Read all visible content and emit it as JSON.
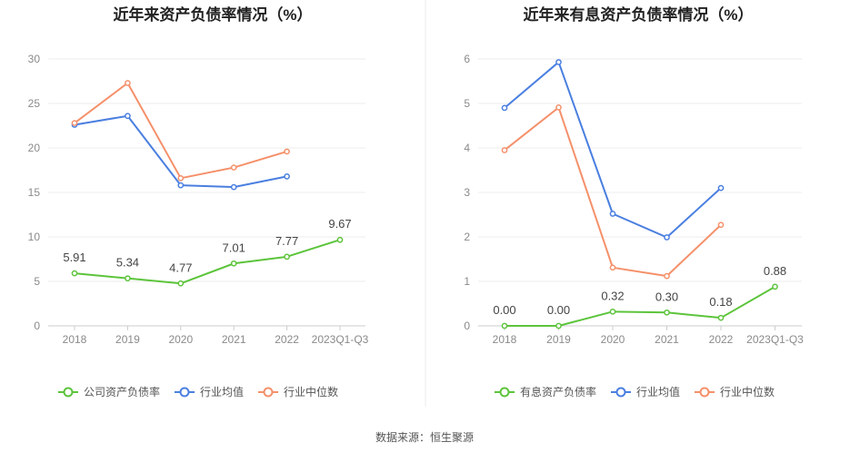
{
  "source_label": "数据来源：恒生聚源",
  "chart_data": [
    {
      "type": "line",
      "title": "近年来资产负债率情况（%）",
      "categories": [
        "2018",
        "2019",
        "2020",
        "2021",
        "2022",
        "2023Q1-Q3"
      ],
      "ylim": [
        0,
        30
      ],
      "yticks": [
        0,
        5,
        10,
        15,
        20,
        25,
        30
      ],
      "grid": true,
      "legend_position": "bottom",
      "series": [
        {
          "name": "公司资产负债率",
          "color": "#5cc43b",
          "values": [
            5.91,
            5.34,
            4.77,
            7.01,
            7.77,
            9.67
          ],
          "labels": [
            "5.91",
            "5.34",
            "4.77",
            "7.01",
            "7.77",
            "9.67"
          ]
        },
        {
          "name": "行业均值",
          "color": "#4a7fe0",
          "values": [
            22.6,
            23.6,
            15.8,
            15.6,
            16.8,
            null
          ]
        },
        {
          "name": "行业中位数",
          "color": "#f5906a",
          "values": [
            22.8,
            27.3,
            16.6,
            17.8,
            19.6,
            null
          ]
        }
      ]
    },
    {
      "type": "line",
      "title": "近年来有息资产负债率情况（%）",
      "categories": [
        "2018",
        "2019",
        "2020",
        "2021",
        "2022",
        "2023Q1-Q3"
      ],
      "ylim": [
        0,
        6
      ],
      "yticks": [
        0,
        1,
        2,
        3,
        4,
        5,
        6
      ],
      "grid": true,
      "legend_position": "bottom",
      "series": [
        {
          "name": "有息资产负债率",
          "color": "#5cc43b",
          "values": [
            0.0,
            0.0,
            0.32,
            0.3,
            0.18,
            0.88
          ],
          "labels": [
            "0.00",
            "0.00",
            "0.32",
            "0.30",
            "0.18",
            "0.88"
          ]
        },
        {
          "name": "行业均值",
          "color": "#4a7fe0",
          "values": [
            4.9,
            5.93,
            2.52,
            1.99,
            3.1,
            null
          ]
        },
        {
          "name": "行业中位数",
          "color": "#f5906a",
          "values": [
            3.95,
            4.91,
            1.31,
            1.12,
            2.27,
            null
          ]
        }
      ]
    }
  ]
}
